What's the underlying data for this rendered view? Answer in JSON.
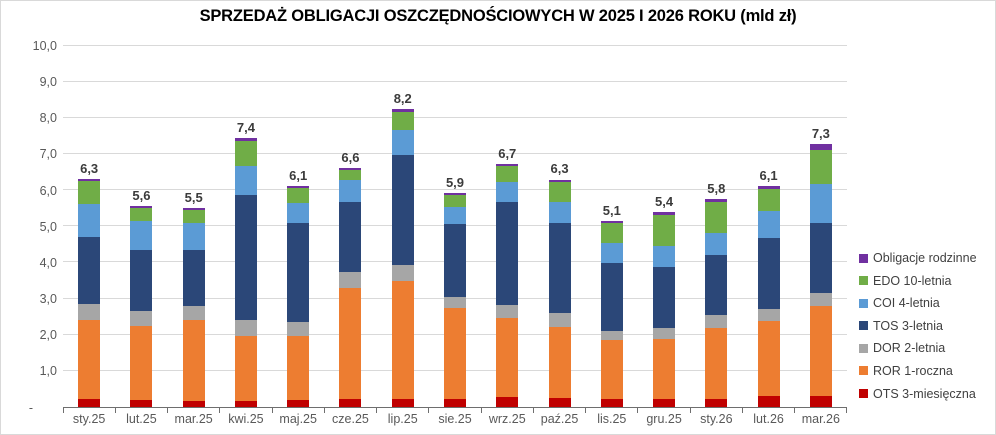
{
  "title": "SPRZEDAŻ OBLIGACJI OSZCZĘDNOŚCIOWYCH W 2025 I 2026 ROKU (mld zł)",
  "chart_data": {
    "type": "bar",
    "stacked": true,
    "title": "SPRZEDAŻ OBLIGACJI OSZCZĘDNOŚCIOWYCH W 2025 I 2026 ROKU (mld zł)",
    "categories": [
      "sty.25",
      "lut.25",
      "mar.25",
      "kwi.25",
      "maj.25",
      "cze.25",
      "lip.25",
      "sie.25",
      "wrz.25",
      "paź.25",
      "lis.25",
      "gru.25",
      "sty.26",
      "lut.26",
      "mar.26"
    ],
    "total_labels": [
      "6,3",
      "5,6",
      "5,5",
      "7,4",
      "6,1",
      "6,6",
      "8,2",
      "5,9",
      "6,7",
      "6,3",
      "5,1",
      "5,4",
      "5,8",
      "6,1",
      "7,3"
    ],
    "series": [
      {
        "name": "OTS 3-miesięczna",
        "color": "#c00000",
        "values": [
          0.2,
          0.19,
          0.16,
          0.16,
          0.18,
          0.2,
          0.21,
          0.22,
          0.26,
          0.23,
          0.2,
          0.2,
          0.2,
          0.3,
          0.28
        ]
      },
      {
        "name": "ROR 1-roczna",
        "color": "#ed7d31",
        "values": [
          2.2,
          2.03,
          2.24,
          1.78,
          1.76,
          3.07,
          3.25,
          2.5,
          2.19,
          1.96,
          1.65,
          1.66,
          1.98,
          2.07,
          2.49
        ]
      },
      {
        "name": "DOR 2-letnia",
        "color": "#a6a6a6",
        "values": [
          0.43,
          0.41,
          0.37,
          0.46,
          0.41,
          0.46,
          0.46,
          0.31,
          0.35,
          0.39,
          0.25,
          0.3,
          0.35,
          0.32,
          0.37
        ]
      },
      {
        "name": "TOS 3-letnia",
        "color": "#2b4778",
        "values": [
          1.87,
          1.71,
          1.57,
          3.46,
          2.72,
          1.93,
          3.04,
          2.02,
          2.85,
          2.5,
          1.87,
          1.7,
          1.66,
          1.98,
          1.94
        ]
      },
      {
        "name": "COI 4-letnia",
        "color": "#5b9bd5",
        "values": [
          0.9,
          0.78,
          0.73,
          0.78,
          0.55,
          0.6,
          0.69,
          0.46,
          0.55,
          0.58,
          0.55,
          0.58,
          0.6,
          0.75,
          1.09
        ]
      },
      {
        "name": "EDO 10-letnia",
        "color": "#70ad47",
        "values": [
          0.63,
          0.37,
          0.37,
          0.71,
          0.42,
          0.28,
          0.5,
          0.33,
          0.45,
          0.55,
          0.55,
          0.87,
          0.88,
          0.6,
          0.92
        ]
      },
      {
        "name": "Obligacje rodzinne",
        "color": "#7030a0",
        "values": [
          0.07,
          0.07,
          0.06,
          0.08,
          0.07,
          0.06,
          0.07,
          0.06,
          0.07,
          0.07,
          0.07,
          0.07,
          0.08,
          0.09,
          0.17
        ]
      }
    ],
    "legend": [
      "Obligacje rodzinne",
      "EDO 10-letnia",
      "COI 4-letnia",
      "TOS 3-letnia",
      "DOR 2-letnia",
      "ROR 1-roczna",
      "OTS 3-miesięczna"
    ],
    "legend_position": "right",
    "grid": true,
    "ylim": [
      0,
      10
    ],
    "ytick_step": 1,
    "ytick_labels": [
      "10,0",
      "9,0",
      "8,0",
      "7,0",
      "6,0",
      "5,0",
      "4,0",
      "3,0",
      "2,0",
      "1,0",
      "-"
    ]
  },
  "colors": {
    "grid": "#d9d9d9",
    "axis": "#6e6e6e",
    "axis_label": "#595959",
    "data_label": "#3b3b3b",
    "legend_label": "#404040",
    "frame_border": "#d9d9d9",
    "background": "#ffffff"
  }
}
